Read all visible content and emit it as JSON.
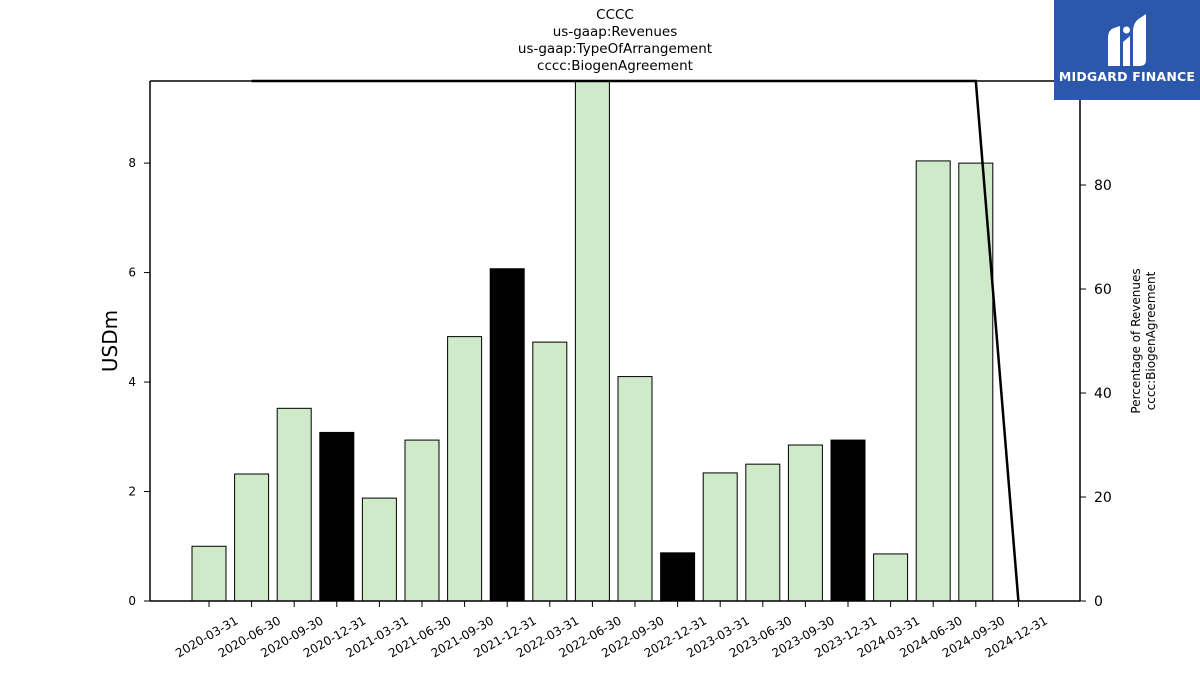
{
  "chart_data": {
    "type": "bar",
    "title_lines": [
      "CCCC",
      "us-gaap:Revenues",
      "us-gaap:TypeOfArrangement",
      "cccc:BiogenAgreement"
    ],
    "xlabel": "",
    "ylabel": "USDm",
    "y2label_lines": [
      "Percentage of Revenues",
      "cccc:BiogenAgreement"
    ],
    "categories": [
      "2020-03-31",
      "2020-06-30",
      "2020-09-30",
      "2020-12-31",
      "2021-03-31",
      "2021-06-30",
      "2021-09-30",
      "2021-12-31",
      "2022-03-31",
      "2022-06-30",
      "2022-09-30",
      "2022-12-31",
      "2023-03-31",
      "2023-06-30",
      "2023-09-30",
      "2023-12-31",
      "2024-03-31",
      "2024-06-30",
      "2024-09-30",
      "2024-12-31"
    ],
    "values": [
      1.0,
      2.32,
      3.52,
      3.08,
      1.88,
      2.94,
      4.83,
      6.07,
      4.73,
      9.6,
      4.1,
      0.88,
      2.34,
      2.5,
      2.85,
      2.94,
      0.86,
      8.04,
      8.0,
      null
    ],
    "highlight": [
      false,
      false,
      false,
      true,
      false,
      false,
      false,
      true,
      false,
      false,
      false,
      true,
      false,
      false,
      false,
      true,
      false,
      false,
      false,
      false
    ],
    "ylim": [
      0,
      9.5
    ],
    "yticks": [
      0,
      2,
      4,
      6,
      8
    ],
    "y2lim": [
      0,
      100
    ],
    "y2ticks": [
      0,
      20,
      40,
      60,
      80
    ],
    "line_series": {
      "x": [
        "2020-06-30",
        "2024-09-30",
        "2024-12-31"
      ],
      "values": [
        100,
        100,
        0
      ]
    },
    "colors": {
      "bar": "#cfeac8",
      "highlight": "#000000",
      "line": "#000000"
    }
  },
  "logo": {
    "text": "MIDGARD FINANCE",
    "bg": "#2b57ac"
  }
}
